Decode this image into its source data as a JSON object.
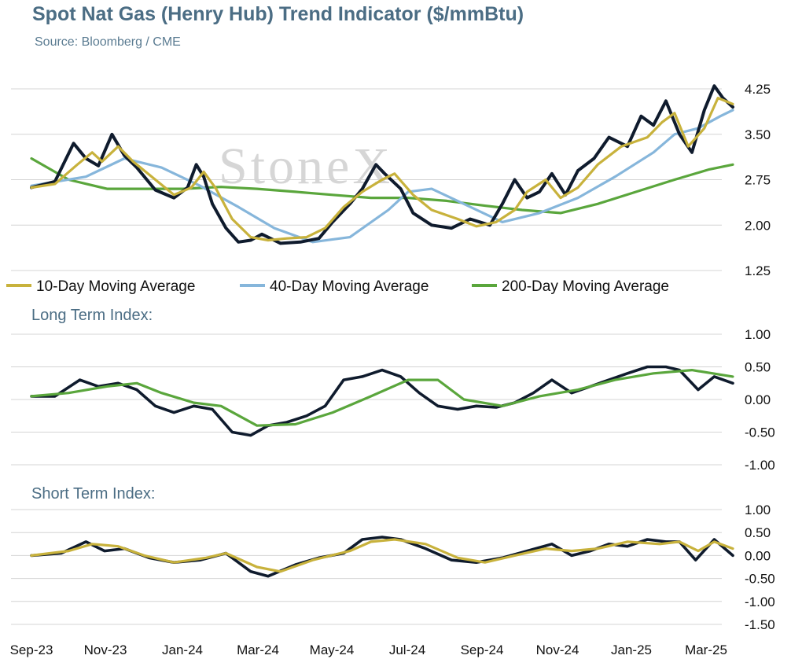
{
  "header": {
    "title": "Spot Nat Gas (Henry Hub) Trend Indicator ($/mmBtu)",
    "source": "Source: Bloomberg / CME"
  },
  "watermark": "StoneX",
  "colors": {
    "price": "#0f1b2d",
    "ma10": "#c8b23c",
    "ma40": "#86b6db",
    "ma200": "#5aa63c",
    "grid": "#d4d4d4",
    "title": "#4b6d84"
  },
  "x_axis": {
    "labels": [
      "Sep-23",
      "Nov-23",
      "Jan-24",
      "Mar-24",
      "May-24",
      "Jul-24",
      "Sep-24",
      "Nov-24",
      "Jan-25",
      "Mar-25"
    ]
  },
  "chart_data": [
    {
      "id": "price",
      "type": "line",
      "title": "Spot Nat Gas (Henry Hub) Trend Indicator ($/mmBtu)",
      "x_range": [
        "2023-09-01",
        "2025-03-20"
      ],
      "ylim": [
        1.25,
        4.25
      ],
      "y_ticks": [
        "4.25",
        "3.50",
        "2.75",
        "2.00",
        "1.25"
      ],
      "grid": true,
      "legend_position": "bottom",
      "legend": [
        "10-Day Moving Average",
        "40-Day Moving Average",
        "200-Day Moving Average"
      ],
      "series": [
        {
          "key": "price",
          "x": [
            "2023-09-01",
            "2023-09-20",
            "2023-10-05",
            "2023-10-15",
            "2023-10-25",
            "2023-11-05",
            "2023-11-15",
            "2023-11-25",
            "2023-12-10",
            "2023-12-25",
            "2024-01-05",
            "2024-01-12",
            "2024-01-18",
            "2024-01-25",
            "2024-02-05",
            "2024-02-15",
            "2024-02-25",
            "2024-03-05",
            "2024-03-20",
            "2024-04-05",
            "2024-04-20",
            "2024-05-01",
            "2024-05-15",
            "2024-05-25",
            "2024-06-05",
            "2024-06-12",
            "2024-06-25",
            "2024-07-05",
            "2024-07-20",
            "2024-08-05",
            "2024-08-20",
            "2024-09-05",
            "2024-09-15",
            "2024-09-25",
            "2024-10-05",
            "2024-10-15",
            "2024-10-25",
            "2024-11-05",
            "2024-11-15",
            "2024-11-28",
            "2024-12-10",
            "2024-12-25",
            "2025-01-05",
            "2025-01-15",
            "2025-01-25",
            "2025-02-05",
            "2025-02-15",
            "2025-02-25",
            "2025-03-05",
            "2025-03-12",
            "2025-03-20"
          ],
          "values": [
            2.62,
            2.72,
            3.35,
            3.1,
            2.98,
            3.5,
            3.15,
            2.95,
            2.58,
            2.45,
            2.62,
            3.0,
            2.8,
            2.35,
            1.95,
            1.72,
            1.75,
            1.85,
            1.7,
            1.72,
            1.78,
            2.05,
            2.35,
            2.6,
            3.0,
            2.85,
            2.6,
            2.2,
            2.0,
            1.95,
            2.1,
            2.0,
            2.35,
            2.75,
            2.45,
            2.55,
            2.85,
            2.5,
            2.9,
            3.1,
            3.45,
            3.3,
            3.8,
            3.65,
            4.05,
            3.5,
            3.2,
            3.9,
            4.3,
            4.1,
            3.95
          ]
        },
        {
          "key": "ma10",
          "name": "10-Day Moving Average",
          "x": [
            "2023-09-01",
            "2023-09-20",
            "2023-10-08",
            "2023-10-20",
            "2023-10-28",
            "2023-11-10",
            "2023-11-22",
            "2023-12-10",
            "2023-12-25",
            "2024-01-08",
            "2024-01-18",
            "2024-01-28",
            "2024-02-10",
            "2024-02-25",
            "2024-03-10",
            "2024-03-25",
            "2024-04-10",
            "2024-04-25",
            "2024-05-10",
            "2024-05-25",
            "2024-06-10",
            "2024-06-20",
            "2024-07-05",
            "2024-07-20",
            "2024-08-10",
            "2024-08-25",
            "2024-09-10",
            "2024-09-25",
            "2024-10-05",
            "2024-10-20",
            "2024-11-01",
            "2024-11-15",
            "2024-12-01",
            "2024-12-20",
            "2025-01-10",
            "2025-01-22",
            "2025-02-01",
            "2025-02-12",
            "2025-02-25",
            "2025-03-08",
            "2025-03-20"
          ],
          "values": [
            2.62,
            2.68,
            3.0,
            3.2,
            3.05,
            3.3,
            3.05,
            2.75,
            2.5,
            2.62,
            2.88,
            2.6,
            2.1,
            1.8,
            1.75,
            1.78,
            1.8,
            1.95,
            2.3,
            2.55,
            2.75,
            2.85,
            2.5,
            2.25,
            2.1,
            1.98,
            2.05,
            2.25,
            2.55,
            2.75,
            2.45,
            2.62,
            3.0,
            3.3,
            3.45,
            3.7,
            3.85,
            3.3,
            3.6,
            4.1,
            4.0
          ]
        },
        {
          "key": "ma40",
          "name": "40-Day Moving Average",
          "x": [
            "2023-09-01",
            "2023-10-15",
            "2023-11-15",
            "2023-12-15",
            "2024-01-15",
            "2024-02-15",
            "2024-03-15",
            "2024-04-15",
            "2024-05-15",
            "2024-06-15",
            "2024-07-01",
            "2024-07-20",
            "2024-08-15",
            "2024-09-15",
            "2024-10-15",
            "2024-11-15",
            "2024-12-15",
            "2025-01-15",
            "2025-02-01",
            "2025-02-20",
            "2025-03-10",
            "2025-03-20"
          ],
          "values": [
            2.65,
            2.8,
            3.1,
            2.95,
            2.65,
            2.3,
            1.95,
            1.72,
            1.8,
            2.25,
            2.55,
            2.6,
            2.35,
            2.05,
            2.2,
            2.45,
            2.8,
            3.2,
            3.5,
            3.6,
            3.8,
            3.9
          ]
        },
        {
          "key": "ma200",
          "name": "200-Day Moving Average",
          "x": [
            "2023-09-01",
            "2023-10-01",
            "2023-11-01",
            "2023-12-01",
            "2024-01-01",
            "2024-02-01",
            "2024-03-01",
            "2024-04-01",
            "2024-05-01",
            "2024-06-01",
            "2024-07-01",
            "2024-08-01",
            "2024-09-01",
            "2024-10-01",
            "2024-11-01",
            "2024-12-01",
            "2025-01-01",
            "2025-02-01",
            "2025-03-01",
            "2025-03-20"
          ],
          "values": [
            3.1,
            2.75,
            2.6,
            2.6,
            2.6,
            2.63,
            2.6,
            2.55,
            2.5,
            2.45,
            2.45,
            2.4,
            2.32,
            2.25,
            2.2,
            2.35,
            2.55,
            2.75,
            2.92,
            3.0
          ]
        }
      ]
    },
    {
      "id": "long",
      "type": "line",
      "title": "Long Term Index:",
      "x_range": [
        "2023-09-01",
        "2025-03-20"
      ],
      "ylim": [
        -1.0,
        1.0
      ],
      "y_ticks": [
        "1.00",
        "0.50",
        "0.00",
        "-0.50",
        "-1.00"
      ],
      "grid": true,
      "series": [
        {
          "key": "price",
          "x": [
            "2023-09-01",
            "2023-09-20",
            "2023-10-10",
            "2023-10-25",
            "2023-11-10",
            "2023-11-25",
            "2023-12-10",
            "2023-12-25",
            "2024-01-10",
            "2024-01-25",
            "2024-02-10",
            "2024-02-25",
            "2024-03-10",
            "2024-03-25",
            "2024-04-10",
            "2024-04-25",
            "2024-05-10",
            "2024-05-25",
            "2024-06-10",
            "2024-06-25",
            "2024-07-10",
            "2024-07-25",
            "2024-08-10",
            "2024-08-25",
            "2024-09-10",
            "2024-09-25",
            "2024-10-10",
            "2024-10-25",
            "2024-11-10",
            "2024-11-25",
            "2024-12-10",
            "2024-12-25",
            "2025-01-10",
            "2025-01-25",
            "2025-02-05",
            "2025-02-20",
            "2025-03-05",
            "2025-03-20"
          ],
          "values": [
            0.05,
            0.05,
            0.3,
            0.2,
            0.25,
            0.15,
            -0.1,
            -0.2,
            -0.1,
            -0.15,
            -0.5,
            -0.55,
            -0.4,
            -0.35,
            -0.25,
            -0.1,
            0.3,
            0.35,
            0.45,
            0.35,
            0.1,
            -0.1,
            -0.15,
            -0.1,
            -0.12,
            -0.05,
            0.1,
            0.3,
            0.1,
            0.2,
            0.3,
            0.4,
            0.5,
            0.5,
            0.45,
            0.15,
            0.35,
            0.25
          ]
        },
        {
          "key": "ma200",
          "x": [
            "2023-09-01",
            "2023-10-01",
            "2023-11-01",
            "2023-11-25",
            "2023-12-15",
            "2024-01-10",
            "2024-02-01",
            "2024-03-01",
            "2024-04-01",
            "2024-05-01",
            "2024-06-01",
            "2024-07-01",
            "2024-07-25",
            "2024-08-15",
            "2024-09-15",
            "2024-10-15",
            "2024-11-15",
            "2024-12-15",
            "2025-01-15",
            "2025-02-15",
            "2025-03-20"
          ],
          "values": [
            0.05,
            0.1,
            0.2,
            0.25,
            0.1,
            -0.05,
            -0.1,
            -0.4,
            -0.38,
            -0.2,
            0.05,
            0.3,
            0.3,
            0.0,
            -0.1,
            0.05,
            0.15,
            0.3,
            0.4,
            0.45,
            0.35
          ]
        }
      ]
    },
    {
      "id": "short",
      "type": "line",
      "title": "Short Term Index:",
      "x_range": [
        "2023-09-01",
        "2025-03-20"
      ],
      "ylim": [
        -1.5,
        1.0
      ],
      "y_ticks": [
        "1.00",
        "0.50",
        "0.00",
        "-0.50",
        "-1.00",
        "-1.50"
      ],
      "grid": true,
      "series": [
        {
          "key": "price",
          "x": [
            "2023-09-01",
            "2023-09-25",
            "2023-10-15",
            "2023-10-30",
            "2023-11-15",
            "2023-12-05",
            "2023-12-25",
            "2024-01-15",
            "2024-02-05",
            "2024-02-25",
            "2024-03-10",
            "2024-04-01",
            "2024-04-20",
            "2024-05-10",
            "2024-05-25",
            "2024-06-10",
            "2024-06-25",
            "2024-07-15",
            "2024-08-05",
            "2024-08-25",
            "2024-09-15",
            "2024-10-05",
            "2024-10-25",
            "2024-11-10",
            "2024-11-25",
            "2024-12-10",
            "2024-12-25",
            "2025-01-10",
            "2025-01-25",
            "2025-02-05",
            "2025-02-18",
            "2025-03-05",
            "2025-03-20"
          ],
          "values": [
            0.0,
            0.05,
            0.3,
            0.1,
            0.15,
            -0.05,
            -0.15,
            -0.1,
            0.05,
            -0.35,
            -0.45,
            -0.2,
            -0.05,
            0.05,
            0.35,
            0.4,
            0.35,
            0.15,
            -0.1,
            -0.15,
            -0.05,
            0.1,
            0.25,
            0.0,
            0.1,
            0.25,
            0.2,
            0.35,
            0.3,
            0.3,
            -0.1,
            0.35,
            0.0
          ]
        },
        {
          "key": "ma10",
          "x": [
            "2023-09-01",
            "2023-10-01",
            "2023-10-20",
            "2023-11-10",
            "2023-12-01",
            "2023-12-25",
            "2024-01-20",
            "2024-02-05",
            "2024-03-01",
            "2024-03-20",
            "2024-04-15",
            "2024-05-15",
            "2024-06-01",
            "2024-06-20",
            "2024-07-15",
            "2024-08-10",
            "2024-09-01",
            "2024-09-25",
            "2024-10-20",
            "2024-11-10",
            "2024-12-01",
            "2024-12-25",
            "2025-01-20",
            "2025-02-05",
            "2025-02-20",
            "2025-03-05",
            "2025-03-20"
          ],
          "values": [
            0.0,
            0.1,
            0.25,
            0.2,
            0.0,
            -0.15,
            -0.05,
            0.05,
            -0.25,
            -0.35,
            -0.1,
            0.1,
            0.3,
            0.35,
            0.25,
            -0.05,
            -0.15,
            0.0,
            0.15,
            0.1,
            0.15,
            0.3,
            0.25,
            0.3,
            0.1,
            0.3,
            0.15
          ]
        }
      ]
    }
  ]
}
